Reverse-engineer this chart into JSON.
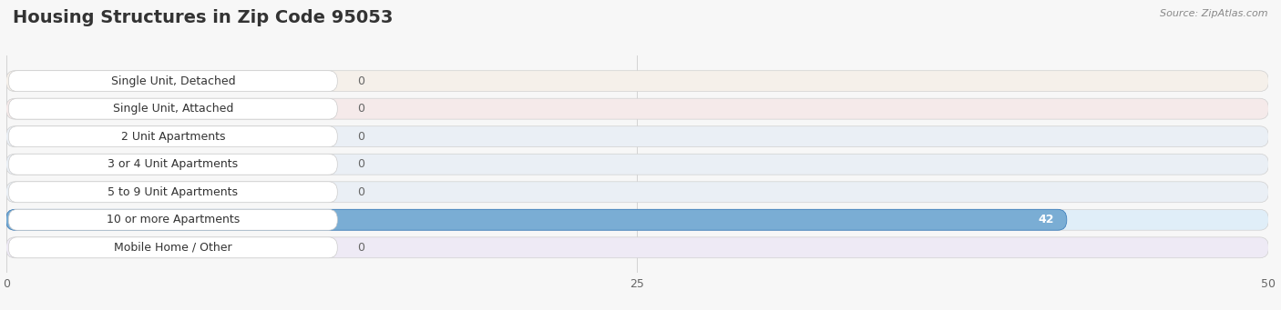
{
  "title": "Housing Structures in Zip Code 95053",
  "source": "Source: ZipAtlas.com",
  "categories": [
    "Single Unit, Detached",
    "Single Unit, Attached",
    "2 Unit Apartments",
    "3 or 4 Unit Apartments",
    "5 to 9 Unit Apartments",
    "10 or more Apartments",
    "Mobile Home / Other"
  ],
  "values": [
    0,
    0,
    0,
    0,
    0,
    42,
    0
  ],
  "bar_colors": [
    "#f5c48a",
    "#f0a0a0",
    "#9ab8d8",
    "#9ab8d8",
    "#9ab8d8",
    "#7aadd4",
    "#c8aad4"
  ],
  "bar_edge_colors": [
    "#e0a060",
    "#d87878",
    "#6090c0",
    "#6090c0",
    "#6090c0",
    "#4080bc",
    "#9870b8"
  ],
  "row_bg_colors": [
    "#f5f0ea",
    "#f5eaea",
    "#eaeff5",
    "#eaeff5",
    "#eaeff5",
    "#e0eef8",
    "#eeeaf5"
  ],
  "xlim": [
    0,
    50
  ],
  "xticks": [
    0,
    25,
    50
  ],
  "background_color": "#f7f7f7",
  "title_fontsize": 14,
  "label_fontsize": 9,
  "tick_fontsize": 9,
  "value_color_inside": "#ffffff",
  "value_color_outside": "#666666"
}
